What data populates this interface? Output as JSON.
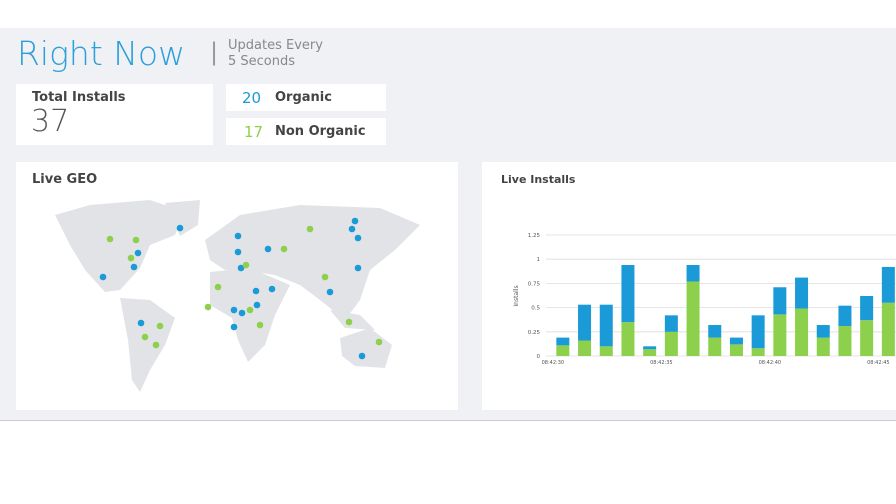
{
  "header": {
    "title": "Right Now",
    "subtitle_line1": "Updates Every",
    "subtitle_line2": "5 Seconds"
  },
  "stats": {
    "total": {
      "label": "Total Installs",
      "value": 37
    },
    "organic": {
      "label": "Organic",
      "value": 20
    },
    "non_organic": {
      "label": "Non Organic",
      "value": 17
    }
  },
  "map_panel": {
    "title": "Live GEO"
  },
  "chart_data": {
    "type": "stacked_bar",
    "title": "Live Installs",
    "y_label": "Installs",
    "categories": [
      "08:42:30",
      null,
      null,
      null,
      null,
      "08:42:35",
      null,
      null,
      null,
      null,
      "08:42:40",
      null,
      null,
      null,
      null,
      "08:42:45"
    ],
    "series": [
      {
        "color": "#8cd04b",
        "values": [
          0.11,
          0.16,
          0.1,
          0.35,
          0.07,
          0.25,
          0.77,
          0.19,
          0.12,
          0.08,
          0.43,
          0.49,
          0.19,
          0.31,
          0.37,
          0.55
        ]
      },
      {
        "color": "#1a9ad6",
        "values": [
          0.08,
          0.37,
          0.43,
          0.59,
          0.03,
          0.17,
          0.17,
          0.13,
          0.07,
          0.34,
          0.28,
          0.32,
          0.13,
          0.21,
          0.25,
          0.37
        ]
      }
    ],
    "ylim": [
      0,
      1.25
    ],
    "yticks": [
      0,
      0.25,
      0.5,
      0.75,
      1,
      1.25
    ],
    "grid": true
  }
}
